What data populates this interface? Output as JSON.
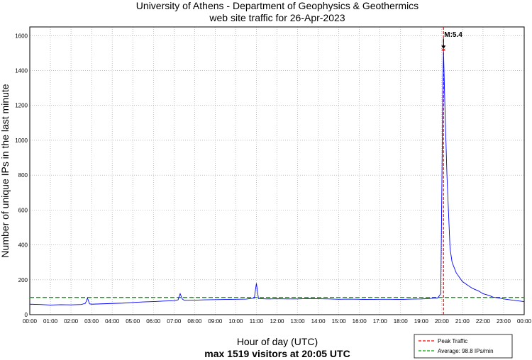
{
  "chart_data": {
    "type": "line",
    "title": "University of Athens - Department of Geophysics & Geothermics",
    "subtitle": "web site traffic for 26-Apr-2023",
    "xlabel": "Hour of day (UTC)",
    "ylabel": "Number of unique IPs in the last minute",
    "footer": "max 1519 visitors at 20:05 UTC",
    "xlim": [
      0,
      24
    ],
    "ylim": [
      0,
      1650
    ],
    "x_tick_labels": [
      "00:00",
      "01:00",
      "02:00",
      "03:00",
      "04:00",
      "05:00",
      "06:00",
      "07:00",
      "08:00",
      "09:00",
      "10:00",
      "11:00",
      "12:00",
      "13:00",
      "14:00",
      "15:00",
      "16:00",
      "17:00",
      "18:00",
      "19:00",
      "20:00",
      "21:00",
      "22:00",
      "23:00",
      "00:00"
    ],
    "y_ticks": [
      0,
      200,
      400,
      600,
      800,
      1000,
      1200,
      1400,
      1600
    ],
    "grid": true,
    "legend_position": "bottom-right",
    "series": [
      {
        "name": "",
        "color": "#0000ff",
        "x": [
          0.0,
          0.5,
          1.0,
          1.5,
          2.0,
          2.5,
          2.7,
          2.8,
          2.9,
          3.0,
          3.5,
          4.0,
          4.5,
          5.0,
          5.5,
          6.0,
          6.5,
          7.0,
          7.2,
          7.3,
          7.4,
          7.5,
          8.0,
          8.5,
          9.0,
          9.5,
          10.0,
          10.5,
          10.9,
          11.0,
          11.1,
          11.5,
          12.0,
          12.5,
          13.0,
          13.5,
          14.0,
          14.5,
          15.0,
          15.5,
          16.0,
          16.5,
          17.0,
          17.5,
          18.0,
          18.5,
          19.0,
          19.4,
          19.6,
          19.8,
          19.95,
          20.0,
          20.05,
          20.083,
          20.15,
          20.25,
          20.4,
          20.5,
          20.7,
          21.0,
          21.3,
          21.5,
          21.8,
          22.0,
          22.3,
          22.5,
          22.8,
          23.0,
          23.5,
          24.0
        ],
        "y": [
          60,
          58,
          55,
          57,
          56,
          58,
          65,
          95,
          62,
          60,
          62,
          64,
          66,
          70,
          73,
          75,
          78,
          80,
          85,
          120,
          90,
          82,
          83,
          85,
          86,
          87,
          88,
          89,
          95,
          180,
          92,
          90,
          91,
          90,
          90,
          92,
          91,
          90,
          88,
          89,
          88,
          87,
          88,
          88,
          87,
          89,
          90,
          92,
          95,
          95,
          120,
          700,
          1300,
          1519,
          1200,
          800,
          380,
          300,
          240,
          190,
          165,
          150,
          135,
          120,
          110,
          100,
          95,
          90,
          82,
          75
        ]
      }
    ],
    "reference_lines": [
      {
        "name": "Peak Traffic",
        "orientation": "vertical",
        "x": 20.083,
        "color": "#ff0000",
        "style": "dashed"
      },
      {
        "name": "Average: 98.8 IPs/min",
        "orientation": "horizontal",
        "y": 98.8,
        "color": "#00aa00",
        "style": "dashed"
      }
    ],
    "annotations": [
      {
        "text": "M:5.4",
        "x": 20.083,
        "y": 1519,
        "marker": "red-star",
        "arrow": true
      }
    ]
  }
}
